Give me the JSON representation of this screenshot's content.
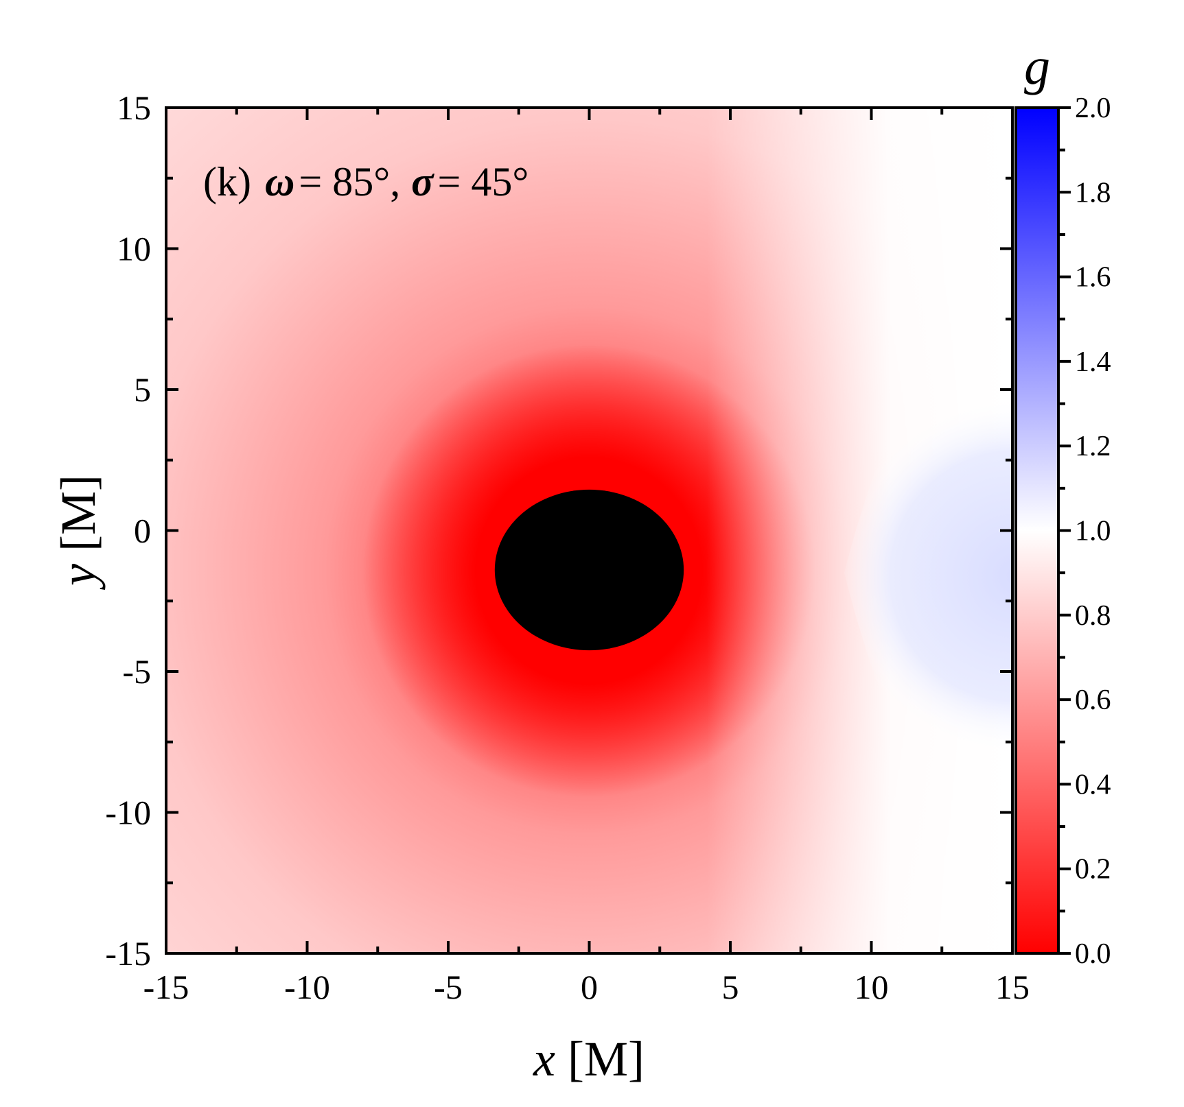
{
  "chart_data": {
    "type": "heatmap",
    "panel_label": "(k)",
    "annotation": {
      "omega_symbol": "ω",
      "omega_value": "= 85°,",
      "sigma_symbol": "σ",
      "sigma_value": "= 45°"
    },
    "xlabel": {
      "var": "x",
      "unit": "[M]"
    },
    "ylabel": {
      "var": "y",
      "unit": "[M]"
    },
    "xlim": [
      -15,
      15
    ],
    "ylim": [
      -15,
      15
    ],
    "x_ticks": [
      {
        "value": -15,
        "label": "-15"
      },
      {
        "value": -10,
        "label": "-10"
      },
      {
        "value": -5,
        "label": "-5"
      },
      {
        "value": 0,
        "label": "0"
      },
      {
        "value": 5,
        "label": "5"
      },
      {
        "value": 10,
        "label": "10"
      },
      {
        "value": 15,
        "label": "15"
      }
    ],
    "y_ticks": [
      {
        "value": 15,
        "label": "15"
      },
      {
        "value": 10,
        "label": "10"
      },
      {
        "value": 5,
        "label": "5"
      },
      {
        "value": 0,
        "label": "0"
      },
      {
        "value": -5,
        "label": "-5"
      },
      {
        "value": -10,
        "label": "-10"
      },
      {
        "value": -15,
        "label": "-15"
      }
    ],
    "colorbar": {
      "label": "g",
      "range": [
        0.0,
        2.0
      ],
      "ticks": [
        {
          "value": 2.0,
          "label": "2.0"
        },
        {
          "value": 1.8,
          "label": "1.8"
        },
        {
          "value": 1.6,
          "label": "1.6"
        },
        {
          "value": 1.4,
          "label": "1.4"
        },
        {
          "value": 1.2,
          "label": "1.2"
        },
        {
          "value": 1.0,
          "label": "1.0"
        },
        {
          "value": 0.8,
          "label": "0.8"
        },
        {
          "value": 0.6,
          "label": "0.6"
        },
        {
          "value": 0.4,
          "label": "0.4"
        },
        {
          "value": 0.2,
          "label": "0.2"
        },
        {
          "value": 0.0,
          "label": "0.0"
        }
      ],
      "colors": {
        "low": "#ff0000",
        "mid": "#ffffff",
        "high": "#0000ff"
      }
    },
    "shadow": {
      "center": [
        0.0,
        -1.4
      ],
      "radius_x": 3.35,
      "radius_y": 2.85,
      "color": "#000000"
    },
    "field_samples": [
      {
        "x": -15,
        "y": 15,
        "g": 0.83
      },
      {
        "x": -15,
        "y": 0,
        "g": 0.72
      },
      {
        "x": -15,
        "y": -15,
        "g": 0.78
      },
      {
        "x": -5,
        "y": -1.5,
        "g": 0.45
      },
      {
        "x": 0,
        "y": 2,
        "g": 0.05
      },
      {
        "x": 0,
        "y": -6,
        "g": 0.2
      },
      {
        "x": 5,
        "y": -1.5,
        "g": 0.6
      },
      {
        "x": 9,
        "y": -1.5,
        "g": 1.0
      },
      {
        "x": 15,
        "y": -1.5,
        "g": 1.07
      },
      {
        "x": 15,
        "y": 15,
        "g": 0.97
      },
      {
        "x": 15,
        "y": -15,
        "g": 1.0
      }
    ]
  }
}
